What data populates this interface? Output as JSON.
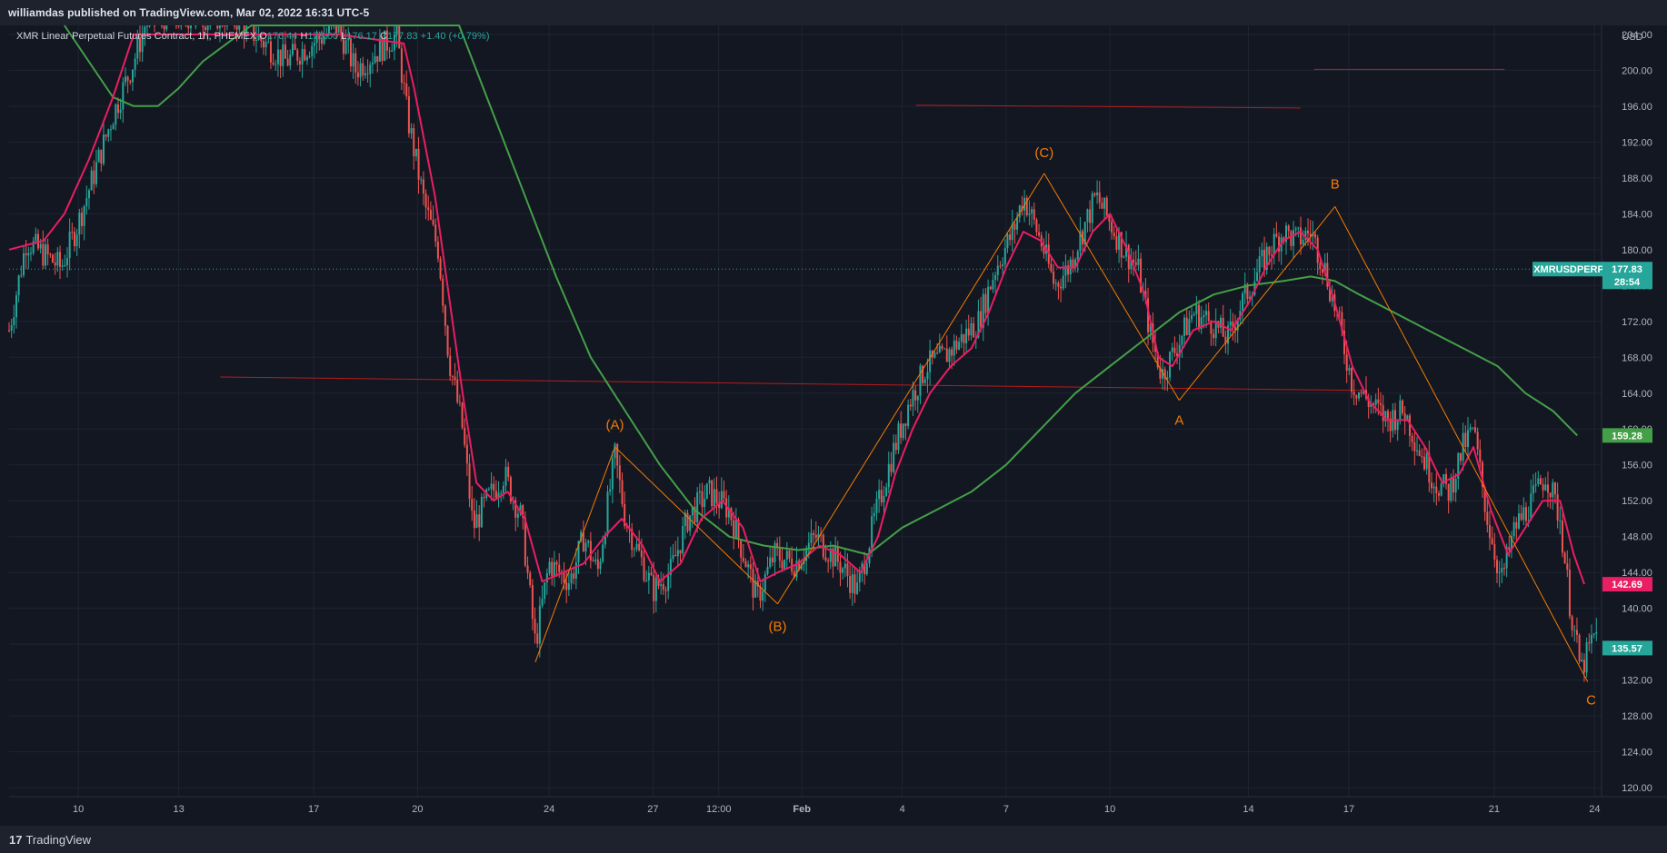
{
  "header": {
    "published": "williamdas published on TradingView.com, Mar 02, 2022 16:31 UTC-5"
  },
  "legend": {
    "symbol": "XMR Linear Perpetual Futures Contract, 1h, PHEMEX",
    "o_label": "O",
    "o_value": "176.44",
    "h_label": "H",
    "h_value": "178.00",
    "l_label": "L",
    "l_value": "176.17",
    "c_label": "C",
    "c_value": "177.83",
    "change": "+1.40 (+0.79%)"
  },
  "footer": {
    "brand": "TradingView",
    "brand_icon": "tradingview-logo-icon"
  },
  "chart_data": {
    "type": "candlestick",
    "currency": "USD",
    "y_ticks": [
      "120.00",
      "124.00",
      "128.00",
      "132.00",
      "136.00",
      "140.00",
      "144.00",
      "148.00",
      "152.00",
      "156.00",
      "160.00",
      "164.00",
      "168.00",
      "172.00",
      "176.00",
      "180.00",
      "184.00",
      "188.00",
      "192.00",
      "196.00",
      "200.00",
      "204.00"
    ],
    "ylim": [
      119,
      205
    ],
    "x_ticks": [
      "10",
      "13",
      "17",
      "20",
      "24",
      "27",
      "12:00",
      "Feb",
      "4",
      "7",
      "10",
      "14",
      "17",
      "21",
      "24"
    ],
    "x_tick_bold": "Feb",
    "price_tags": [
      {
        "label": "XMRUSDPERP",
        "value": "177.83",
        "sub": "28:54",
        "color": "#26a69a"
      },
      {
        "label": "",
        "value": "159.28",
        "color": "#43a047"
      },
      {
        "label": "",
        "value": "142.69",
        "color": "#e91e63"
      },
      {
        "label": "",
        "value": "135.57",
        "color": "#26a69a"
      }
    ],
    "annotations": [
      "(A)",
      "(B)",
      "(C)",
      "A",
      "B",
      "C"
    ],
    "colors": {
      "up": "#26a69a",
      "down": "#ef5350",
      "fast_ma": "#e91e63",
      "slow_ma": "#43a047",
      "wave": "#f57c00",
      "level": "#b71c1c",
      "grid": "#1f2433",
      "current": "#26a69a"
    },
    "price_path": [
      {
        "x": 0.0,
        "y": 171
      },
      {
        "x": 0.5,
        "y": 181
      },
      {
        "x": 1.5,
        "y": 178
      },
      {
        "x": 2.0,
        "y": 183
      },
      {
        "x": 2.5,
        "y": 189
      },
      {
        "x": 3.0,
        "y": 195
      },
      {
        "x": 3.6,
        "y": 201
      },
      {
        "x": 4.0,
        "y": 206
      },
      {
        "x": 6.5,
        "y": 206
      },
      {
        "x": 8.0,
        "y": 201
      },
      {
        "x": 9.5,
        "y": 205
      },
      {
        "x": 10.0,
        "y": 200
      },
      {
        "x": 11.2,
        "y": 204
      },
      {
        "x": 11.5,
        "y": 195
      },
      {
        "x": 12.0,
        "y": 185
      },
      {
        "x": 12.4,
        "y": 180
      },
      {
        "x": 12.7,
        "y": 168
      },
      {
        "x": 13.1,
        "y": 160
      },
      {
        "x": 13.4,
        "y": 149
      },
      {
        "x": 13.8,
        "y": 152
      },
      {
        "x": 14.3,
        "y": 155
      },
      {
        "x": 14.8,
        "y": 150
      },
      {
        "x": 15.2,
        "y": 136
      },
      {
        "x": 15.6,
        "y": 145
      },
      {
        "x": 16.2,
        "y": 143
      },
      {
        "x": 16.6,
        "y": 148
      },
      {
        "x": 17.0,
        "y": 144
      },
      {
        "x": 17.5,
        "y": 157
      },
      {
        "x": 17.8,
        "y": 150
      },
      {
        "x": 18.2,
        "y": 146
      },
      {
        "x": 18.6,
        "y": 142
      },
      {
        "x": 19.1,
        "y": 144
      },
      {
        "x": 19.6,
        "y": 150
      },
      {
        "x": 20.2,
        "y": 153
      },
      {
        "x": 20.8,
        "y": 151
      },
      {
        "x": 21.3,
        "y": 145
      },
      {
        "x": 21.6,
        "y": 141
      },
      {
        "x": 22.1,
        "y": 146
      },
      {
        "x": 22.7,
        "y": 145
      },
      {
        "x": 23.3,
        "y": 148
      },
      {
        "x": 24.0,
        "y": 145
      },
      {
        "x": 24.5,
        "y": 142
      },
      {
        "x": 25.0,
        "y": 150
      },
      {
        "x": 25.5,
        "y": 157
      },
      {
        "x": 26.0,
        "y": 163
      },
      {
        "x": 26.5,
        "y": 167
      },
      {
        "x": 27.0,
        "y": 168
      },
      {
        "x": 27.5,
        "y": 170
      },
      {
        "x": 28.0,
        "y": 172
      },
      {
        "x": 28.5,
        "y": 178
      },
      {
        "x": 29.0,
        "y": 182
      },
      {
        "x": 29.3,
        "y": 186
      },
      {
        "x": 29.8,
        "y": 181
      },
      {
        "x": 30.2,
        "y": 176
      },
      {
        "x": 30.6,
        "y": 178
      },
      {
        "x": 31.0,
        "y": 182
      },
      {
        "x": 31.4,
        "y": 186
      },
      {
        "x": 31.8,
        "y": 183
      },
      {
        "x": 32.2,
        "y": 180
      },
      {
        "x": 32.6,
        "y": 178
      },
      {
        "x": 33.0,
        "y": 170
      },
      {
        "x": 33.3,
        "y": 166
      },
      {
        "x": 33.7,
        "y": 169
      },
      {
        "x": 34.2,
        "y": 173
      },
      {
        "x": 34.7,
        "y": 172
      },
      {
        "x": 35.2,
        "y": 170
      },
      {
        "x": 35.6,
        "y": 174
      },
      {
        "x": 36.0,
        "y": 177
      },
      {
        "x": 36.4,
        "y": 180
      },
      {
        "x": 36.8,
        "y": 182
      },
      {
        "x": 37.2,
        "y": 181
      },
      {
        "x": 37.6,
        "y": 182
      },
      {
        "x": 38.0,
        "y": 178
      },
      {
        "x": 38.4,
        "y": 172
      },
      {
        "x": 38.8,
        "y": 165
      },
      {
        "x": 39.3,
        "y": 163
      },
      {
        "x": 39.8,
        "y": 161
      },
      {
        "x": 40.3,
        "y": 162
      },
      {
        "x": 40.7,
        "y": 158
      },
      {
        "x": 41.2,
        "y": 154
      },
      {
        "x": 41.6,
        "y": 153
      },
      {
        "x": 42.0,
        "y": 158
      },
      {
        "x": 42.3,
        "y": 160
      },
      {
        "x": 42.7,
        "y": 150
      },
      {
        "x": 43.1,
        "y": 143
      },
      {
        "x": 43.5,
        "y": 149
      },
      {
        "x": 44.0,
        "y": 152
      },
      {
        "x": 44.4,
        "y": 155
      },
      {
        "x": 44.8,
        "y": 150
      },
      {
        "x": 45.1,
        "y": 140
      },
      {
        "x": 45.4,
        "y": 133
      },
      {
        "x": 45.8,
        "y": 137
      }
    ],
    "fast_ma_path": [
      {
        "x": 0.0,
        "y": 180
      },
      {
        "x": 1.0,
        "y": 181
      },
      {
        "x": 1.6,
        "y": 184
      },
      {
        "x": 2.3,
        "y": 190
      },
      {
        "x": 3.0,
        "y": 197
      },
      {
        "x": 3.6,
        "y": 204
      },
      {
        "x": 6.5,
        "y": 204
      },
      {
        "x": 9.5,
        "y": 204
      },
      {
        "x": 11.4,
        "y": 203
      },
      {
        "x": 11.7,
        "y": 198
      },
      {
        "x": 12.3,
        "y": 186
      },
      {
        "x": 12.7,
        "y": 175
      },
      {
        "x": 13.1,
        "y": 164
      },
      {
        "x": 13.5,
        "y": 154
      },
      {
        "x": 14.0,
        "y": 152
      },
      {
        "x": 14.4,
        "y": 153
      },
      {
        "x": 14.9,
        "y": 150
      },
      {
        "x": 15.4,
        "y": 143
      },
      {
        "x": 16.0,
        "y": 144
      },
      {
        "x": 16.6,
        "y": 145
      },
      {
        "x": 17.2,
        "y": 148
      },
      {
        "x": 17.7,
        "y": 150
      },
      {
        "x": 18.3,
        "y": 147
      },
      {
        "x": 18.8,
        "y": 143
      },
      {
        "x": 19.4,
        "y": 145
      },
      {
        "x": 20.0,
        "y": 150
      },
      {
        "x": 20.6,
        "y": 152
      },
      {
        "x": 21.2,
        "y": 149
      },
      {
        "x": 21.7,
        "y": 143
      },
      {
        "x": 22.2,
        "y": 144
      },
      {
        "x": 22.8,
        "y": 145
      },
      {
        "x": 23.4,
        "y": 147
      },
      {
        "x": 24.0,
        "y": 146
      },
      {
        "x": 24.6,
        "y": 144
      },
      {
        "x": 25.1,
        "y": 148
      },
      {
        "x": 25.6,
        "y": 155
      },
      {
        "x": 26.1,
        "y": 160
      },
      {
        "x": 26.6,
        "y": 164
      },
      {
        "x": 27.2,
        "y": 167
      },
      {
        "x": 27.8,
        "y": 169
      },
      {
        "x": 28.3,
        "y": 173
      },
      {
        "x": 28.8,
        "y": 178
      },
      {
        "x": 29.3,
        "y": 182
      },
      {
        "x": 29.8,
        "y": 181
      },
      {
        "x": 30.3,
        "y": 178
      },
      {
        "x": 30.8,
        "y": 178
      },
      {
        "x": 31.3,
        "y": 182
      },
      {
        "x": 31.8,
        "y": 184
      },
      {
        "x": 32.3,
        "y": 180
      },
      {
        "x": 32.8,
        "y": 175
      },
      {
        "x": 33.2,
        "y": 168
      },
      {
        "x": 33.6,
        "y": 167
      },
      {
        "x": 34.2,
        "y": 171
      },
      {
        "x": 34.8,
        "y": 172
      },
      {
        "x": 35.3,
        "y": 171
      },
      {
        "x": 35.8,
        "y": 174
      },
      {
        "x": 36.3,
        "y": 178
      },
      {
        "x": 36.8,
        "y": 181
      },
      {
        "x": 37.3,
        "y": 182
      },
      {
        "x": 37.8,
        "y": 180
      },
      {
        "x": 38.3,
        "y": 174
      },
      {
        "x": 38.8,
        "y": 167
      },
      {
        "x": 39.3,
        "y": 163
      },
      {
        "x": 39.8,
        "y": 161
      },
      {
        "x": 40.4,
        "y": 161
      },
      {
        "x": 40.9,
        "y": 158
      },
      {
        "x": 41.4,
        "y": 154
      },
      {
        "x": 41.9,
        "y": 155
      },
      {
        "x": 42.3,
        "y": 158
      },
      {
        "x": 42.8,
        "y": 151
      },
      {
        "x": 43.3,
        "y": 146
      },
      {
        "x": 43.8,
        "y": 149
      },
      {
        "x": 44.3,
        "y": 152
      },
      {
        "x": 44.8,
        "y": 152
      },
      {
        "x": 45.2,
        "y": 146
      },
      {
        "x": 45.5,
        "y": 142.69
      }
    ],
    "slow_ma_path": [
      {
        "x": 1.6,
        "y": 205
      },
      {
        "x": 2.3,
        "y": 201
      },
      {
        "x": 3.0,
        "y": 197
      },
      {
        "x": 3.6,
        "y": 196
      },
      {
        "x": 4.3,
        "y": 196
      },
      {
        "x": 4.9,
        "y": 198
      },
      {
        "x": 5.6,
        "y": 201
      },
      {
        "x": 6.3,
        "y": 203
      },
      {
        "x": 7.0,
        "y": 205
      },
      {
        "x": 13.0,
        "y": 205
      },
      {
        "x": 13.8,
        "y": 197
      },
      {
        "x": 14.8,
        "y": 187
      },
      {
        "x": 15.8,
        "y": 177
      },
      {
        "x": 16.8,
        "y": 168
      },
      {
        "x": 17.8,
        "y": 162
      },
      {
        "x": 18.8,
        "y": 156
      },
      {
        "x": 19.8,
        "y": 151
      },
      {
        "x": 20.8,
        "y": 148
      },
      {
        "x": 21.8,
        "y": 147
      },
      {
        "x": 22.8,
        "y": 146.5
      },
      {
        "x": 23.8,
        "y": 147
      },
      {
        "x": 24.8,
        "y": 146
      },
      {
        "x": 25.8,
        "y": 149
      },
      {
        "x": 26.8,
        "y": 151
      },
      {
        "x": 27.8,
        "y": 153
      },
      {
        "x": 28.8,
        "y": 156
      },
      {
        "x": 29.8,
        "y": 160
      },
      {
        "x": 30.8,
        "y": 164
      },
      {
        "x": 31.8,
        "y": 167
      },
      {
        "x": 32.8,
        "y": 170
      },
      {
        "x": 33.8,
        "y": 173
      },
      {
        "x": 34.8,
        "y": 175
      },
      {
        "x": 35.8,
        "y": 176
      },
      {
        "x": 36.8,
        "y": 176.5
      },
      {
        "x": 37.6,
        "y": 177
      },
      {
        "x": 38.3,
        "y": 176.5
      },
      {
        "x": 39.0,
        "y": 175
      },
      {
        "x": 40.0,
        "y": 173
      },
      {
        "x": 41.0,
        "y": 171
      },
      {
        "x": 42.0,
        "y": 169
      },
      {
        "x": 43.0,
        "y": 167
      },
      {
        "x": 43.8,
        "y": 164
      },
      {
        "x": 44.6,
        "y": 162
      },
      {
        "x": 45.3,
        "y": 159.28
      }
    ],
    "wave_path": [
      {
        "x": 15.2,
        "y": 134
      },
      {
        "x": 17.5,
        "y": 158
      },
      {
        "x": 22.2,
        "y": 140.5
      },
      {
        "x": 29.9,
        "y": 188.5
      },
      {
        "x": 33.8,
        "y": 163.2
      },
      {
        "x": 38.3,
        "y": 184.8
      },
      {
        "x": 45.6,
        "y": 131.8
      }
    ],
    "level_lines": [
      {
        "x1": 6.1,
        "y1": 165.8,
        "x2": 39.1,
        "y2": 164.3
      },
      {
        "x1": 26.2,
        "y1": 196.1,
        "x2": 37.3,
        "y2": 195.8
      },
      {
        "x1": 37.7,
        "y1": 200.1,
        "x2": 43.2,
        "y2": 200.1
      }
    ],
    "current_line": 177.83,
    "annotation_points": [
      {
        "text": "(A)",
        "x": 17.5,
        "y": 160.5
      },
      {
        "text": "(B)",
        "x": 22.2,
        "y": 138
      },
      {
        "text": "(C)",
        "x": 29.9,
        "y": 190.8
      },
      {
        "text": "A",
        "x": 33.8,
        "y": 161
      },
      {
        "text": "B",
        "x": 38.3,
        "y": 187.3
      },
      {
        "text": "C",
        "x": 45.7,
        "y": 129.8
      }
    ]
  }
}
